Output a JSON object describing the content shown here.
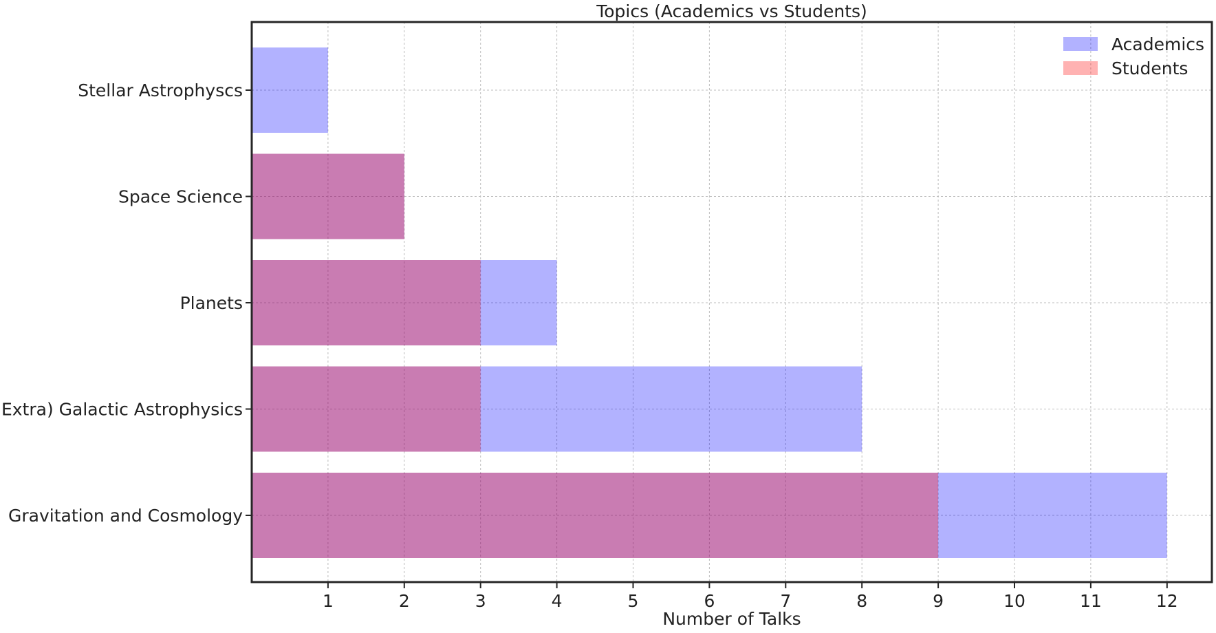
{
  "chart_data": {
    "type": "bar",
    "orientation": "horizontal",
    "title": "Topics (Academics vs Students)",
    "xlabel": "Number of Talks",
    "ylabel": "",
    "categories": [
      "Gravitation and Cosmology",
      "(Extra) Galactic Astrophysics",
      "Planets",
      "Space Science",
      "Stellar Astrophyscs"
    ],
    "series": [
      {
        "name": "Academics",
        "values": [
          12,
          8,
          4,
          2,
          1
        ],
        "color": "#0000ff",
        "opacity": 0.3
      },
      {
        "name": "Students",
        "values": [
          9,
          3,
          3,
          2,
          0
        ],
        "color": "#ff0000",
        "opacity": 0.3
      }
    ],
    "xlim": [
      0,
      12.6
    ],
    "xticks": [
      1,
      2,
      3,
      4,
      5,
      6,
      7,
      8,
      9,
      10,
      11,
      12
    ],
    "grid": true,
    "legend_position": "top-right"
  }
}
